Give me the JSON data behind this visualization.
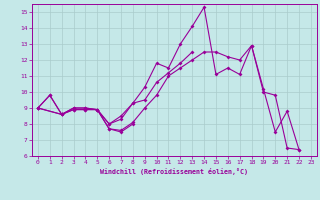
{
  "title": "",
  "xlabel": "Windchill (Refroidissement éolien,°C)",
  "bg_color": "#c5e8e8",
  "line_color": "#990099",
  "grid_color": "#aacccc",
  "xlim": [
    -0.5,
    23.5
  ],
  "ylim": [
    6,
    15.5
  ],
  "xticks": [
    0,
    1,
    2,
    3,
    4,
    5,
    6,
    7,
    8,
    9,
    10,
    11,
    12,
    13,
    14,
    15,
    16,
    17,
    18,
    19,
    20,
    21,
    22,
    23
  ],
  "yticks": [
    6,
    7,
    8,
    9,
    10,
    11,
    12,
    13,
    14,
    15
  ],
  "line1_x": [
    0,
    1,
    2,
    3,
    4,
    5,
    6,
    7,
    8,
    9,
    10,
    11,
    12,
    13,
    14,
    15,
    16,
    17,
    18,
    19,
    20,
    21,
    22
  ],
  "line1_y": [
    9.0,
    9.8,
    8.6,
    9.0,
    9.0,
    8.9,
    8.0,
    8.3,
    9.3,
    10.3,
    11.8,
    11.5,
    13.0,
    14.1,
    15.3,
    11.1,
    11.5,
    11.1,
    12.9,
    10.2,
    7.5,
    8.8,
    6.4
  ],
  "line2_x": [
    0,
    1,
    2,
    3,
    4,
    5,
    6,
    7,
    8,
    9,
    10,
    11,
    12,
    13
  ],
  "line2_y": [
    9.0,
    9.8,
    8.6,
    9.0,
    9.0,
    8.9,
    8.0,
    8.5,
    9.3,
    9.5,
    10.6,
    11.2,
    11.8,
    12.5
  ],
  "line3_x": [
    0,
    2,
    3,
    4,
    5,
    6,
    7,
    8,
    9,
    10,
    11,
    12,
    13,
    14,
    15,
    16,
    17,
    18,
    19,
    20,
    21,
    22
  ],
  "line3_y": [
    9.0,
    8.6,
    8.9,
    8.9,
    8.9,
    7.7,
    7.6,
    8.1,
    9.0,
    9.8,
    11.0,
    11.5,
    12.0,
    12.5,
    12.5,
    12.2,
    12.0,
    12.9,
    10.0,
    9.8,
    6.5,
    6.4
  ],
  "line4_x": [
    0,
    2,
    3,
    4,
    5,
    6,
    7,
    8
  ],
  "line4_y": [
    9.0,
    8.6,
    8.9,
    8.9,
    8.9,
    7.7,
    7.5,
    8.0
  ]
}
